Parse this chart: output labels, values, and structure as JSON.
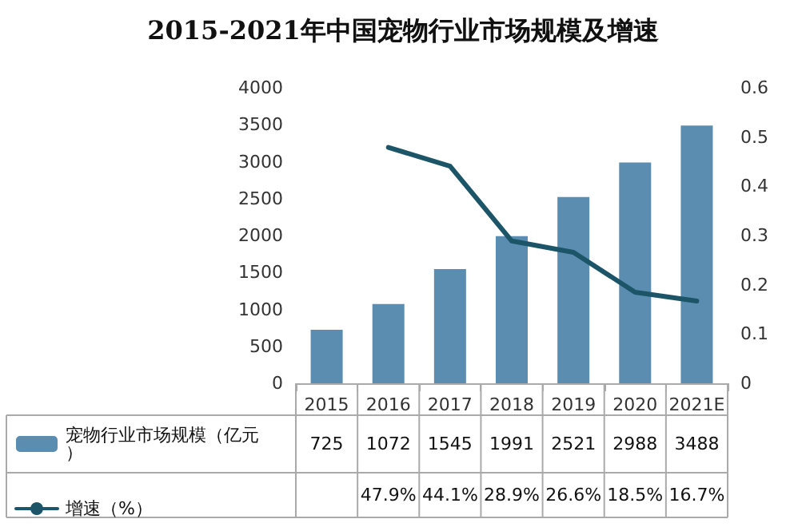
{
  "chart_data": {
    "type": "bar",
    "title": "2015-2021年中国宠物行业市场规模及增速",
    "categories": [
      "2015",
      "2016",
      "2017",
      "2018",
      "2019",
      "2020",
      "2021E"
    ],
    "series": [
      {
        "name": "宠物行业市场规模（亿元）",
        "color": "#5a8db0",
        "values": [
          725,
          1072,
          1545,
          1991,
          2521,
          2988,
          3488
        ],
        "value_labels": [
          "725",
          "1072",
          "1545",
          "1991",
          "2521",
          "2988",
          "3488"
        ]
      },
      {
        "name": "增速（%）",
        "type": "line",
        "axis": "y2",
        "color": "#1d5568",
        "values": [
          null,
          0.479,
          0.441,
          0.289,
          0.266,
          0.185,
          0.167
        ],
        "value_labels": [
          null,
          "47.9%",
          "44.1%",
          "28.9%",
          "26.6%",
          "18.5%",
          "16.7%"
        ]
      }
    ],
    "ylim": [
      0,
      4000
    ],
    "yticks": [
      0,
      500,
      1000,
      1500,
      2000,
      2500,
      3000,
      3500,
      4000
    ],
    "y2lim": [
      0,
      0.6
    ],
    "y2ticks": [
      0,
      0.1,
      0.2,
      0.3,
      0.4,
      0.5,
      0.6
    ],
    "grid": false,
    "legend": "bottom left",
    "marker": "none",
    "line_style": "solid"
  }
}
